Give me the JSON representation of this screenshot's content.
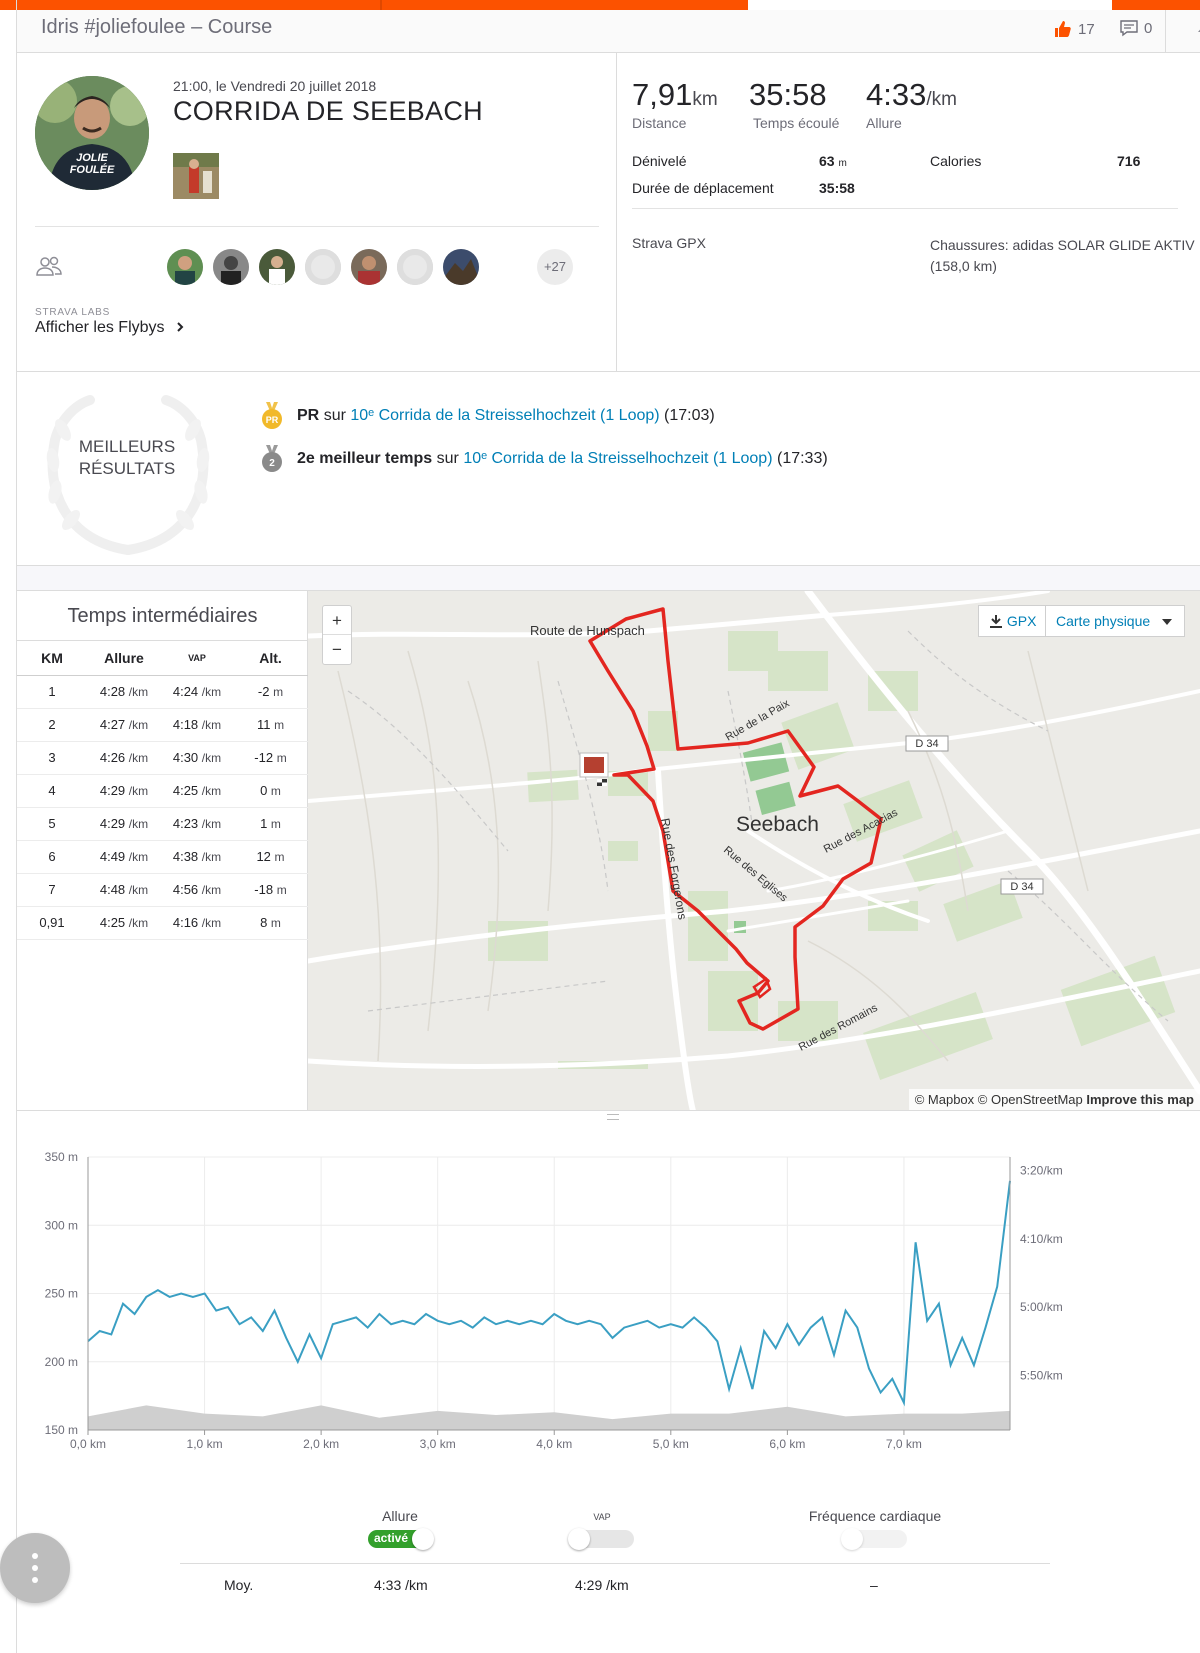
{
  "header": {
    "title": "Idris #joliefoulee – Course",
    "kudos_count": "17",
    "comment_count": "0"
  },
  "activity": {
    "date": "21:00, le Vendredi 20 juillet 2018",
    "name": "CORRIDA DE SEEBACH",
    "avatar_text": [
      "JOLIE",
      "FOULÉE"
    ],
    "more_athletes": "+27",
    "labs_label": "STRAVA LABS",
    "flybys_label": "Afficher les Flybys"
  },
  "stats": {
    "distance": {
      "value": "7,91",
      "unit": "km",
      "label": "Distance"
    },
    "elapsed": {
      "value": "35:58",
      "label": "Temps écoulé"
    },
    "pace": {
      "value": "4:33",
      "unit": "/km",
      "label": "Allure"
    },
    "elevation_label": "Dénivelé",
    "elevation_value": "63",
    "elevation_unit": "m",
    "calories_label": "Calories",
    "calories_value": "716",
    "moving_label": "Durée de déplacement",
    "moving_value": "35:58",
    "device": "Strava GPX",
    "shoes_line1": "Chaussures: adidas SOLAR GLIDE AKTIV",
    "shoes_line2": "(158,0 km)"
  },
  "best_efforts": {
    "label_line1": "MEILLEURS",
    "label_line2": "RÉSULTATS",
    "items": [
      {
        "badge": "PR",
        "strong": "PR",
        "word": "sur",
        "link": "10ᵉ Corrida de la Streisselhochzeit (1 Loop)",
        "time": "(17:03)"
      },
      {
        "badge": "2",
        "strong": "2e meilleur temps",
        "word": "sur",
        "link": "10ᵉ Corrida de la Streisselhochzeit (1 Loop)",
        "time": "(17:33)"
      }
    ]
  },
  "splits": {
    "title": "Temps intermédiaires",
    "columns": [
      "KM",
      "Allure",
      "VAP",
      "Alt."
    ],
    "pace_unit": "/km",
    "alt_unit": "m",
    "rows": [
      {
        "km": "1",
        "pace": "4:28",
        "gap": "4:24",
        "alt": "-2"
      },
      {
        "km": "2",
        "pace": "4:27",
        "gap": "4:18",
        "alt": "11"
      },
      {
        "km": "3",
        "pace": "4:26",
        "gap": "4:30",
        "alt": "-12"
      },
      {
        "km": "4",
        "pace": "4:29",
        "gap": "4:25",
        "alt": "0"
      },
      {
        "km": "5",
        "pace": "4:29",
        "gap": "4:23",
        "alt": "1"
      },
      {
        "km": "6",
        "pace": "4:49",
        "gap": "4:38",
        "alt": "12"
      },
      {
        "km": "7",
        "pace": "4:48",
        "gap": "4:56",
        "alt": "-18"
      },
      {
        "km": "0,91",
        "pace": "4:25",
        "gap": "4:16",
        "alt": "8"
      }
    ]
  },
  "map": {
    "zoom_in": "+",
    "zoom_out": "−",
    "gpx_label": "GPX",
    "map_type": "Carte physique",
    "labels": {
      "route_hunspach": "Route de Hunspach",
      "rue_paix": "Rue de la Paix",
      "seebach": "Seebach",
      "rue_acacias": "Rue des Acacias",
      "rue_forgerons": "Rue des Forgerons",
      "rue_eglises": "Rue des Eglises",
      "rue_romains": "Rue des Romains",
      "d34_a": "D 34",
      "d34_b": "D 34"
    },
    "attribution_a": "© Mapbox © OpenStreetMap ",
    "attribution_b": "Improve this map"
  },
  "chart_data": {
    "type": "line",
    "xlabel": "",
    "x_ticks": [
      "0,0 km",
      "1,0 km",
      "2,0 km",
      "3,0 km",
      "4,0 km",
      "5,0 km",
      "6,0 km",
      "7,0 km"
    ],
    "xlim": [
      0,
      7.91
    ],
    "y_left_ticks": [
      "350 m",
      "300 m",
      "250 m",
      "200 m",
      "150 m"
    ],
    "ylim_left": [
      150,
      350
    ],
    "y_right_ticks": [
      "3:20/km",
      "4:10/km",
      "5:00/km",
      "5:50/km"
    ],
    "ylim_right": [
      0,
      4
    ],
    "series": [
      {
        "name": "Allure",
        "axis": "right",
        "color": "#3a9fc3",
        "x": [
          0.0,
          0.1,
          0.2,
          0.3,
          0.4,
          0.5,
          0.6,
          0.7,
          0.8,
          0.9,
          1.0,
          1.1,
          1.2,
          1.3,
          1.4,
          1.5,
          1.6,
          1.7,
          1.8,
          1.9,
          2.0,
          2.1,
          2.2,
          2.3,
          2.4,
          2.5,
          2.6,
          2.7,
          2.8,
          2.9,
          3.0,
          3.1,
          3.2,
          3.3,
          3.4,
          3.5,
          3.6,
          3.7,
          3.8,
          3.9,
          4.0,
          4.1,
          4.2,
          4.3,
          4.4,
          4.5,
          4.6,
          4.7,
          4.8,
          4.9,
          5.0,
          5.1,
          5.2,
          5.3,
          5.4,
          5.5,
          5.6,
          5.7,
          5.8,
          5.9,
          6.0,
          6.1,
          6.2,
          6.3,
          6.4,
          6.5,
          6.6,
          6.7,
          6.8,
          6.9,
          7.0,
          7.1,
          7.2,
          7.3,
          7.4,
          7.5,
          7.6,
          7.7,
          7.8,
          7.91
        ],
        "y": [
          1.3,
          1.45,
          1.4,
          1.85,
          1.7,
          1.95,
          2.05,
          1.95,
          2.0,
          1.95,
          2.0,
          1.75,
          1.8,
          1.55,
          1.65,
          1.45,
          1.75,
          1.35,
          1.0,
          1.4,
          1.05,
          1.55,
          1.6,
          1.65,
          1.5,
          1.7,
          1.55,
          1.6,
          1.55,
          1.7,
          1.6,
          1.55,
          1.6,
          1.5,
          1.65,
          1.55,
          1.6,
          1.55,
          1.6,
          1.55,
          1.7,
          1.6,
          1.55,
          1.6,
          1.55,
          1.35,
          1.5,
          1.55,
          1.6,
          1.5,
          1.55,
          1.5,
          1.65,
          1.5,
          1.3,
          0.6,
          1.2,
          0.6,
          1.45,
          1.2,
          1.55,
          1.25,
          1.5,
          1.65,
          1.1,
          1.75,
          1.5,
          0.9,
          0.55,
          0.75,
          0.4,
          2.75,
          1.6,
          1.85,
          0.95,
          1.35,
          0.95,
          1.5,
          2.1,
          3.65
        ]
      },
      {
        "name": "Altitude",
        "axis": "left",
        "color": "#cfcfcf",
        "x": [
          0.0,
          0.5,
          1.0,
          1.5,
          2.0,
          2.5,
          3.0,
          3.5,
          4.0,
          4.5,
          5.0,
          5.5,
          6.0,
          6.5,
          7.0,
          7.5,
          7.91
        ],
        "y": [
          160,
          168,
          162,
          160,
          168,
          159,
          164,
          161,
          163,
          158,
          162,
          162,
          167,
          160,
          162,
          162,
          164
        ]
      }
    ]
  },
  "toggles": {
    "pace": {
      "label": "Allure",
      "state": "activé"
    },
    "gap": {
      "label": "VAP"
    },
    "hr": {
      "label": "Fréquence cardiaque"
    }
  },
  "averages": {
    "label": "Moy.",
    "pace": "4:33 /km",
    "gap": "4:29 /km",
    "hr": "–"
  }
}
